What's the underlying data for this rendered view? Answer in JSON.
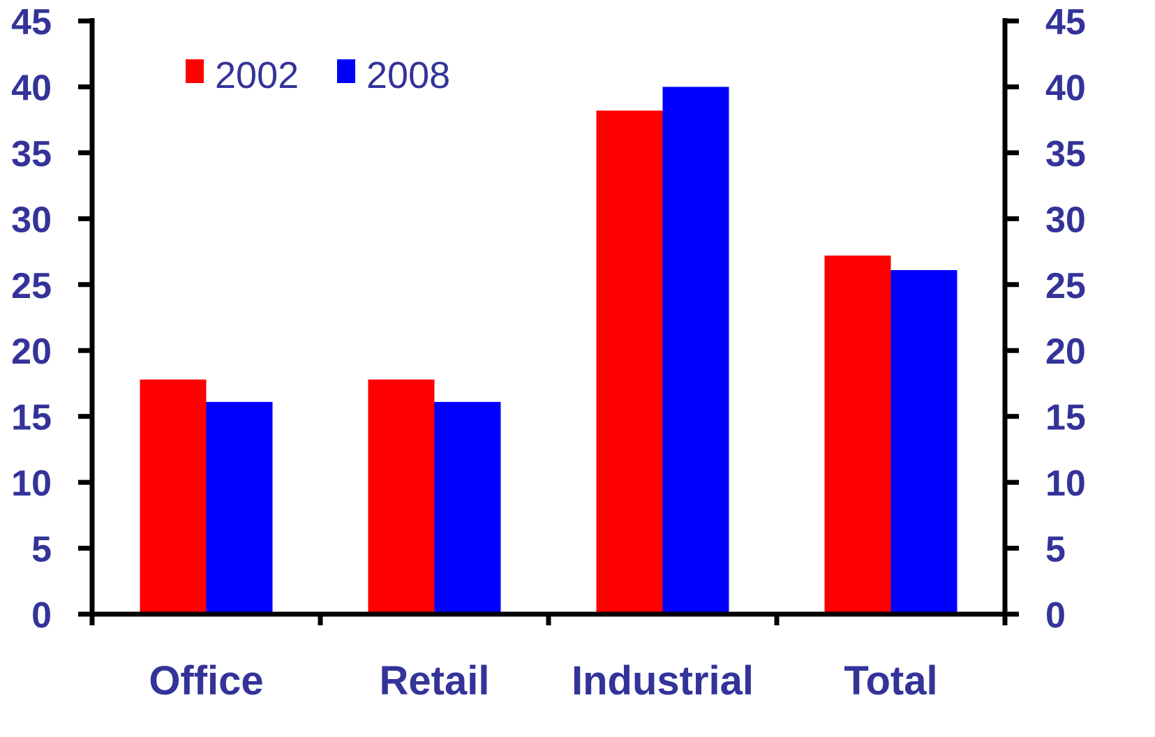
{
  "chart_data": {
    "type": "bar",
    "categories": [
      "Office",
      "Retail",
      "Industrial",
      "Total"
    ],
    "series": [
      {
        "name": "2002",
        "values": [
          17.8,
          17.8,
          38.2,
          27.2
        ],
        "color": "#ff0000"
      },
      {
        "name": "2008",
        "values": [
          16.1,
          16.1,
          40.0,
          26.1
        ],
        "color": "#0000ff"
      }
    ],
    "title": "",
    "xlabel": "",
    "ylabel": "",
    "ylim": [
      0,
      45
    ],
    "yticks": [
      "0",
      "5",
      "10",
      "15",
      "20",
      "25",
      "30",
      "35",
      "40",
      "45"
    ],
    "secondary_yticks": [
      "0",
      "5",
      "10",
      "15",
      "20",
      "25",
      "30",
      "35",
      "40",
      "45"
    ],
    "grid": false,
    "legend": "top-left",
    "colors": {
      "text": "#333399",
      "axis": "#000000"
    }
  }
}
